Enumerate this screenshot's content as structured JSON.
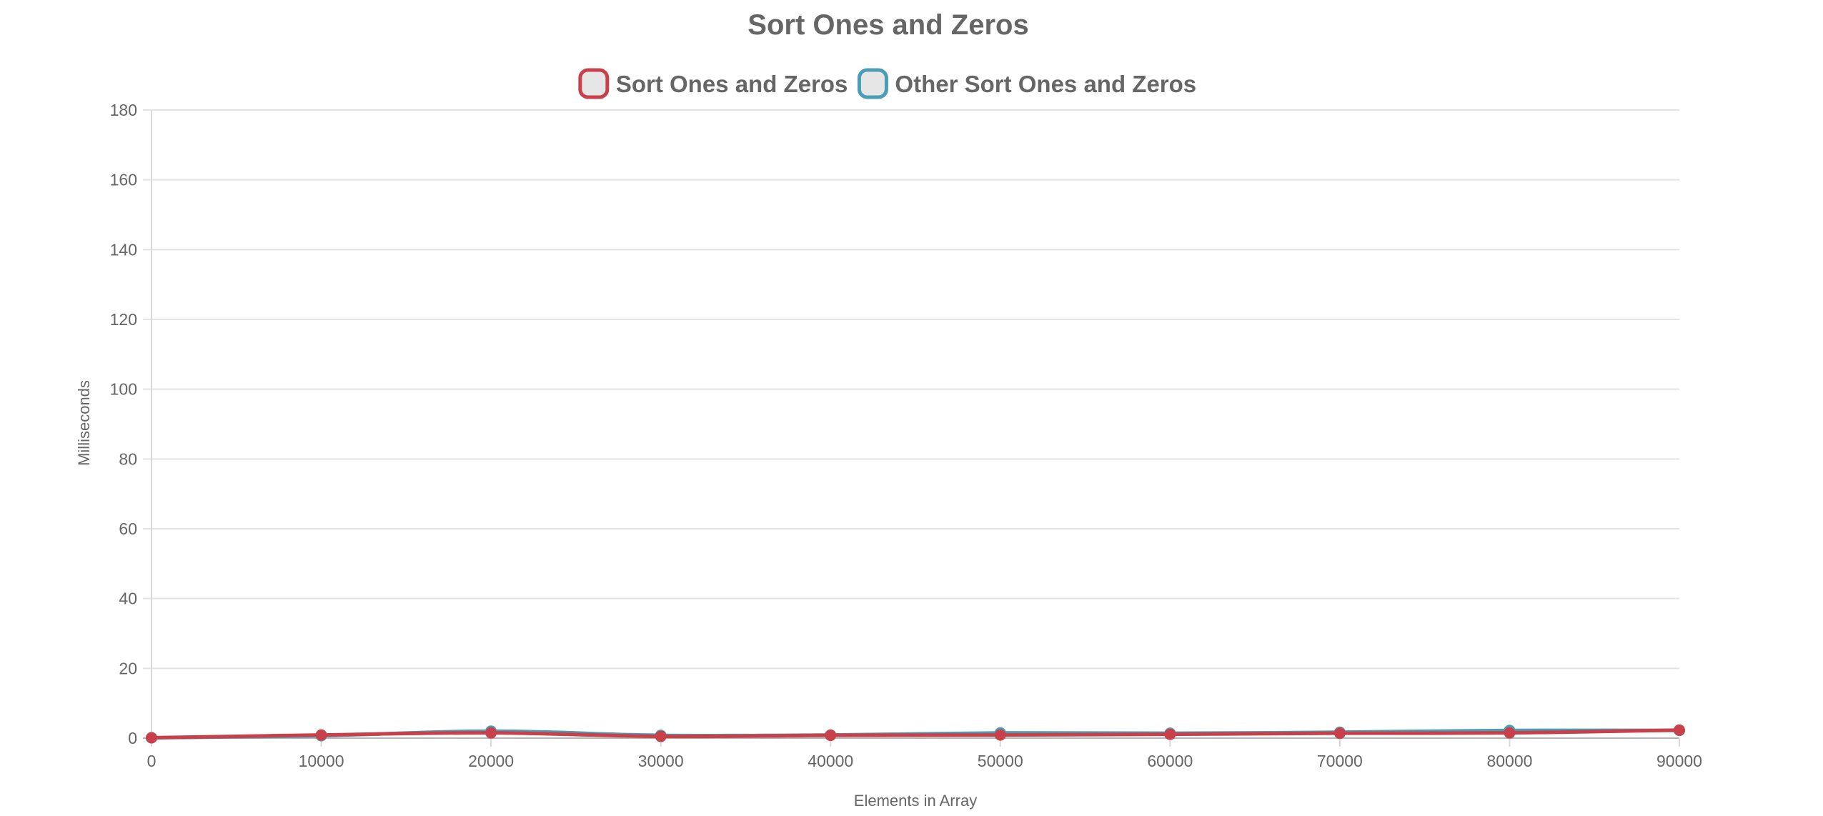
{
  "chart_data": {
    "type": "line",
    "title": "Sort Ones and Zeros",
    "xlabel": "Elements in Array",
    "ylabel": "Milliseconds",
    "x": [
      0,
      10000,
      20000,
      30000,
      40000,
      50000,
      60000,
      70000,
      80000,
      90000
    ],
    "x_tick_labels": [
      "0",
      "10000",
      "20000",
      "30000",
      "40000",
      "50000",
      "60000",
      "70000",
      "80000",
      "90000"
    ],
    "y_tick_labels": [
      "0",
      "20",
      "40",
      "60",
      "80",
      "100",
      "120",
      "140",
      "160",
      "180"
    ],
    "xlim": [
      0,
      90000
    ],
    "ylim": [
      0,
      180
    ],
    "y_step": 20,
    "grid": "horizontal",
    "legend_position": "top-center",
    "series": [
      {
        "name": "Other Sort Ones and Zeros",
        "color": "#4a9db5",
        "values": [
          0.1,
          0.7,
          2.0,
          0.8,
          0.9,
          1.5,
          1.4,
          1.7,
          2.2,
          2.2
        ]
      },
      {
        "name": "Sort Ones and Zeros",
        "color": "#c8404a",
        "values": [
          0.1,
          0.9,
          1.5,
          0.5,
          0.8,
          0.9,
          1.1,
          1.4,
          1.5,
          2.3
        ]
      }
    ],
    "legend_order": [
      1,
      0
    ]
  }
}
